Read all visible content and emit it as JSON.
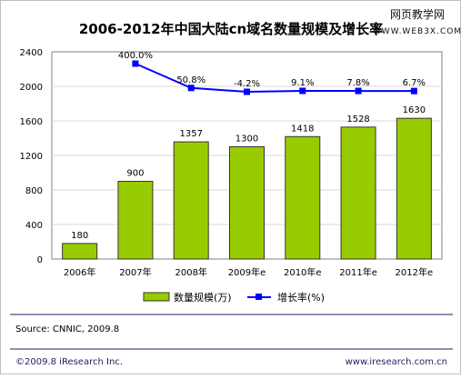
{
  "watermark": {
    "line1": "网页教学网",
    "line2": "WWW.WEB3X.COM"
  },
  "footer": {
    "source": "Source:  CNNIC, 2009.8",
    "copyright": "©2009.8 iResearch Inc.",
    "website": "www.iresearch.com.cn"
  },
  "colors": {
    "bar_fill": "#99cc00",
    "bar_stroke": "#333333",
    "line": "#0000ff",
    "gridline": "#d9d9d9",
    "title": "#000000",
    "footer_text": "#1f1f5f"
  },
  "chart_data": {
    "type": "bar",
    "title": "2006-2012年中国大陆cn域名数量规模及增长率",
    "xlabel": "",
    "ylabel": "",
    "categories": [
      "2006年",
      "2007年",
      "2008年",
      "2009年e",
      "2010年e",
      "2011年e",
      "2012年e"
    ],
    "ylim": [
      0,
      2400
    ],
    "yticks": [
      0,
      400,
      800,
      1200,
      1600,
      2000,
      2400
    ],
    "grid": true,
    "legend_position": "bottom",
    "series": [
      {
        "name": "数量规模(万)",
        "type": "bar",
        "values": [
          180,
          900,
          1357,
          1300,
          1418,
          1528,
          1630
        ],
        "labels": [
          "180",
          "900",
          "1357",
          "1300",
          "1418",
          "1528",
          "1630"
        ]
      },
      {
        "name": "增长率(%)",
        "type": "line",
        "values": [
          null,
          400.0,
          50.8,
          -4.2,
          9.1,
          7.8,
          6.7
        ],
        "labels": [
          "",
          "400.0%",
          "50.8%",
          "-4.2%",
          "9.1%",
          "7.8%",
          "6.7%"
        ]
      }
    ]
  }
}
